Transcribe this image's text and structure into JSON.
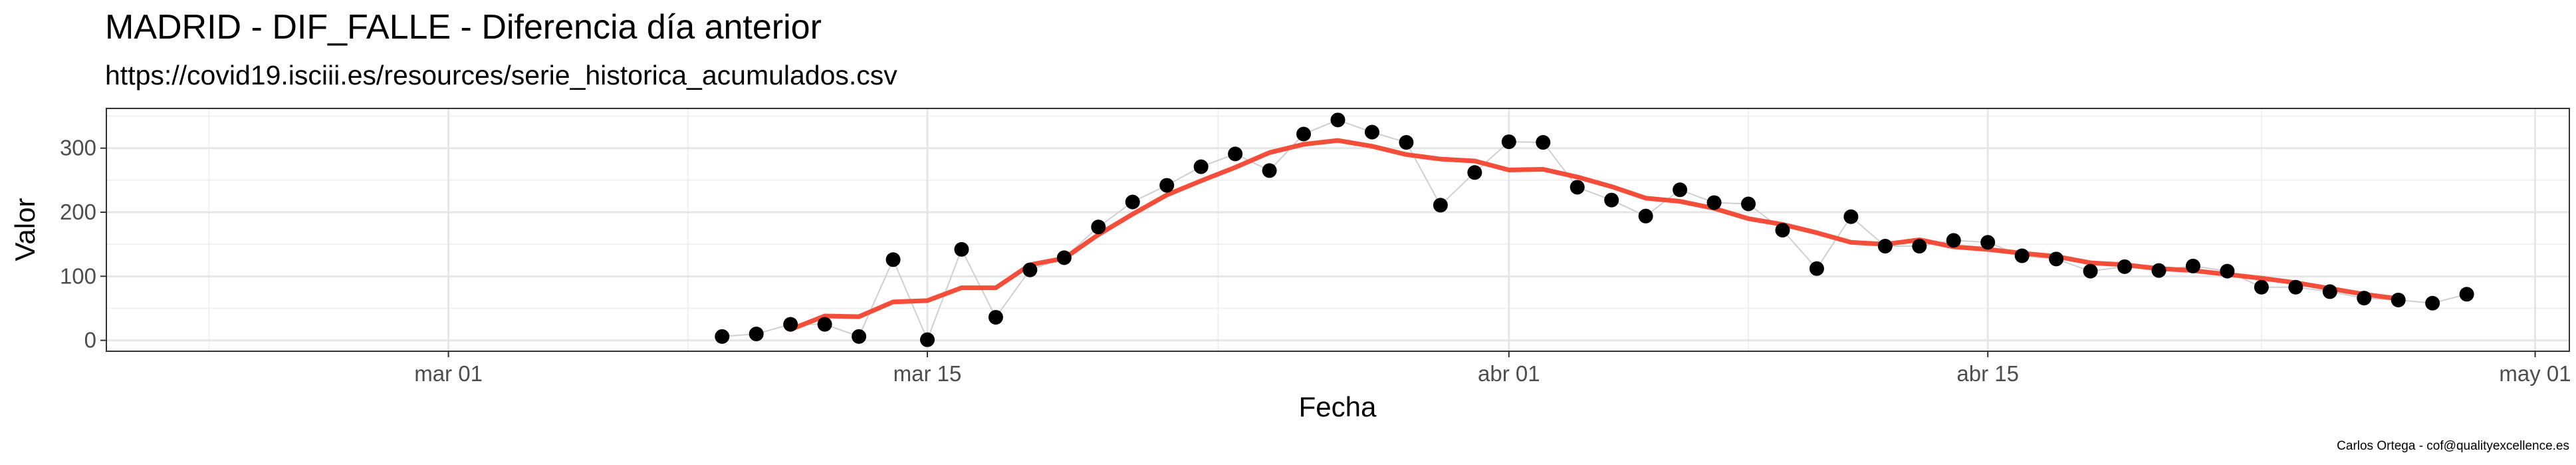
{
  "title": "MADRID - DIF_FALLE - Diferencia día anterior",
  "subtitle": "https://covid19.isciii.es/resources/serie_historica_acumulados.csv",
  "caption": "Carlos Ortega - cof@qualityexcellence.es",
  "chart_data": {
    "type": "scatter",
    "xlabel": "Fecha",
    "ylabel": "Valor",
    "x_tick_labels": [
      "mar 01",
      "mar 15",
      "abr 01",
      "abr 15",
      "may 01"
    ],
    "x_ticks": [
      "2020-03-01",
      "2020-03-15",
      "2020-04-01",
      "2020-04-15",
      "2020-05-01"
    ],
    "xlim": [
      "2020-02-20",
      "2020-05-02"
    ],
    "y_ticks": [
      0,
      100,
      200,
      300
    ],
    "ylim": [
      -17,
      362
    ],
    "grid": true,
    "series": [
      {
        "kind": "points",
        "color": "#000000",
        "connector_color": "#cfcfcf",
        "points": [
          [
            "2020-03-09",
            6
          ],
          [
            "2020-03-10",
            10
          ],
          [
            "2020-03-11",
            25
          ],
          [
            "2020-03-12",
            25
          ],
          [
            "2020-03-13",
            6
          ],
          [
            "2020-03-14",
            126
          ],
          [
            "2020-03-15",
            1
          ],
          [
            "2020-03-16",
            142
          ],
          [
            "2020-03-17",
            36
          ],
          [
            "2020-03-18",
            110
          ],
          [
            "2020-03-19",
            129
          ],
          [
            "2020-03-20",
            177
          ],
          [
            "2020-03-21",
            216
          ],
          [
            "2020-03-22",
            242
          ],
          [
            "2020-03-23",
            271
          ],
          [
            "2020-03-24",
            291
          ],
          [
            "2020-03-25",
            265
          ],
          [
            "2020-03-26",
            322
          ],
          [
            "2020-03-27",
            344
          ],
          [
            "2020-03-28",
            325
          ],
          [
            "2020-03-29",
            309
          ],
          [
            "2020-03-30",
            211
          ],
          [
            "2020-03-31",
            262
          ],
          [
            "2020-04-01",
            310
          ],
          [
            "2020-04-02",
            309
          ],
          [
            "2020-04-03",
            239
          ],
          [
            "2020-04-04",
            219
          ],
          [
            "2020-04-05",
            194
          ],
          [
            "2020-04-06",
            235
          ],
          [
            "2020-04-07",
            215
          ],
          [
            "2020-04-08",
            213
          ],
          [
            "2020-04-09",
            172
          ],
          [
            "2020-04-10",
            112
          ],
          [
            "2020-04-11",
            193
          ],
          [
            "2020-04-12",
            147
          ],
          [
            "2020-04-13",
            147
          ],
          [
            "2020-04-14",
            156
          ],
          [
            "2020-04-15",
            153
          ],
          [
            "2020-04-16",
            132
          ],
          [
            "2020-04-17",
            127
          ],
          [
            "2020-04-18",
            108
          ],
          [
            "2020-04-19",
            115
          ],
          [
            "2020-04-20",
            109
          ],
          [
            "2020-04-21",
            116
          ],
          [
            "2020-04-22",
            108
          ],
          [
            "2020-04-23",
            83
          ],
          [
            "2020-04-24",
            83
          ],
          [
            "2020-04-25",
            76
          ],
          [
            "2020-04-26",
            66
          ],
          [
            "2020-04-27",
            63
          ],
          [
            "2020-04-28",
            58
          ],
          [
            "2020-04-29",
            72
          ]
        ]
      },
      {
        "kind": "line",
        "color": "#f44e3b",
        "points": [
          [
            "2020-03-11",
            17
          ],
          [
            "2020-03-12",
            38
          ],
          [
            "2020-03-13",
            37
          ],
          [
            "2020-03-14",
            60
          ],
          [
            "2020-03-15",
            62
          ],
          [
            "2020-03-16",
            82
          ],
          [
            "2020-03-17",
            82
          ],
          [
            "2020-03-18",
            118
          ],
          [
            "2020-03-19",
            128
          ],
          [
            "2020-03-20",
            165
          ],
          [
            "2020-03-21",
            197
          ],
          [
            "2020-03-22",
            227
          ],
          [
            "2020-03-23",
            249
          ],
          [
            "2020-03-24",
            270
          ],
          [
            "2020-03-25",
            293
          ],
          [
            "2020-03-26",
            306
          ],
          [
            "2020-03-27",
            312
          ],
          [
            "2020-03-28",
            303
          ],
          [
            "2020-03-29",
            290
          ],
          [
            "2020-03-30",
            283
          ],
          [
            "2020-03-31",
            280
          ],
          [
            "2020-04-01",
            266
          ],
          [
            "2020-04-02",
            267
          ],
          [
            "2020-04-03",
            255
          ],
          [
            "2020-04-04",
            240
          ],
          [
            "2020-04-05",
            222
          ],
          [
            "2020-04-06",
            217
          ],
          [
            "2020-04-07",
            206
          ],
          [
            "2020-04-08",
            190
          ],
          [
            "2020-04-09",
            181
          ],
          [
            "2020-04-10",
            168
          ],
          [
            "2020-04-11",
            153
          ],
          [
            "2020-04-12",
            150
          ],
          [
            "2020-04-13",
            157
          ],
          [
            "2020-04-14",
            146
          ],
          [
            "2020-04-15",
            142
          ],
          [
            "2020-04-16",
            136
          ],
          [
            "2020-04-17",
            131
          ],
          [
            "2020-04-18",
            121
          ],
          [
            "2020-04-19",
            118
          ],
          [
            "2020-04-20",
            112
          ],
          [
            "2020-04-21",
            109
          ],
          [
            "2020-04-22",
            103
          ],
          [
            "2020-04-23",
            97
          ],
          [
            "2020-04-24",
            90
          ],
          [
            "2020-04-25",
            81
          ],
          [
            "2020-04-26",
            72
          ],
          [
            "2020-04-27",
            65
          ]
        ]
      }
    ]
  }
}
